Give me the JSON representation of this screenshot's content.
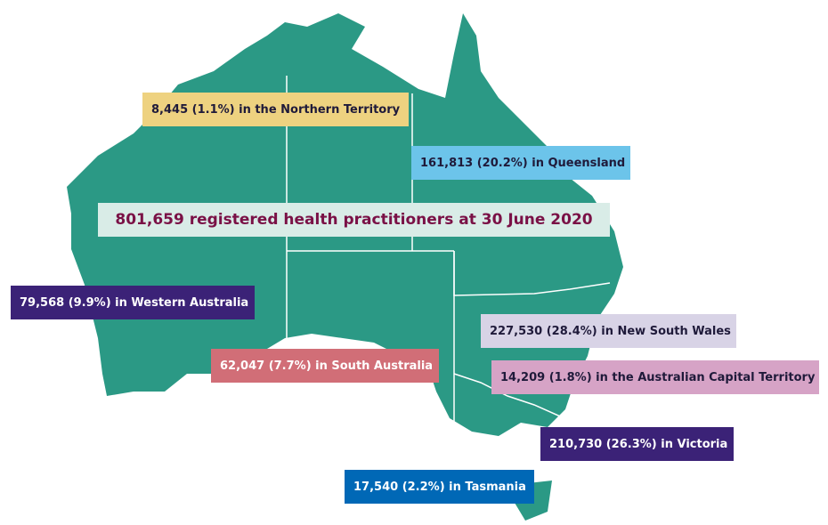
{
  "title": "801,659 registered health practitioners at 30 June 2020",
  "regions": [
    {
      "label": "8,445 (1.1%) in the Northern Territory"
    },
    {
      "label": "161,813 (20.2%) in Queensland"
    },
    {
      "label": "79,568 (9.9%) in Western Australia"
    },
    {
      "label": "62,047 (7.7%) in South Australia"
    },
    {
      "label": "227,530 (28.4%) in New South Wales"
    },
    {
      "label": "14,209 (1.8%) in the Australian Capital Territory"
    },
    {
      "label": "210,730 (26.3%) in Victoria"
    },
    {
      "label": "17,540 (2.2%) in Tasmania"
    }
  ]
}
